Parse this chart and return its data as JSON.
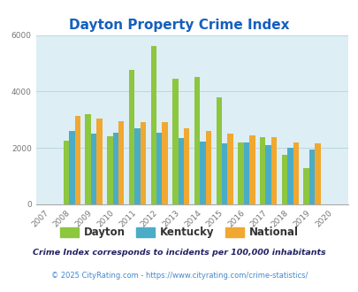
{
  "title": "Dayton Property Crime Index",
  "years": [
    2007,
    2008,
    2009,
    2010,
    2011,
    2012,
    2013,
    2014,
    2015,
    2016,
    2017,
    2018,
    2019,
    2020
  ],
  "dayton": [
    null,
    2250,
    3200,
    2400,
    4750,
    5600,
    4450,
    4500,
    3800,
    2200,
    2380,
    1750,
    1300,
    null
  ],
  "kentucky": [
    null,
    2600,
    2500,
    2550,
    2700,
    2550,
    2350,
    2220,
    2150,
    2200,
    2100,
    2000,
    1950,
    null
  ],
  "national": [
    null,
    3150,
    3050,
    2950,
    2900,
    2900,
    2700,
    2600,
    2500,
    2450,
    2380,
    2200,
    2150,
    null
  ],
  "bar_colors": {
    "dayton": "#8dc63f",
    "kentucky": "#4bacc6",
    "national": "#f0a830"
  },
  "ylim": [
    0,
    6000
  ],
  "yticks": [
    0,
    2000,
    4000,
    6000
  ],
  "background_color": "#ddeef4",
  "title_color": "#1560bd",
  "title_fontsize": 11,
  "footnote1": "Crime Index corresponds to incidents per 100,000 inhabitants",
  "footnote2": "© 2025 CityRating.com - https://www.cityrating.com/crime-statistics/",
  "footnote1_color": "#222266",
  "footnote2_color": "#4488cc",
  "legend_fontsize": 8.5,
  "tick_fontsize": 6.5
}
